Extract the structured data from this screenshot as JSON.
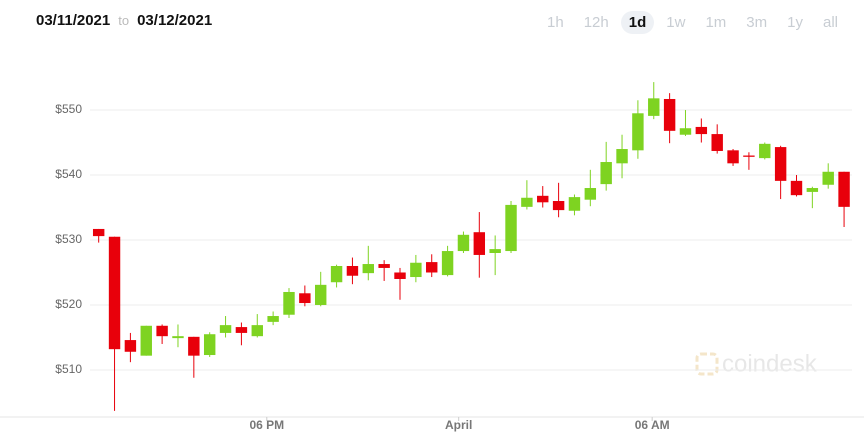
{
  "range": {
    "from": "03/11/2021",
    "sep": "to",
    "to": "03/12/2021"
  },
  "intervals": [
    "1h",
    "12h",
    "1d",
    "1w",
    "1m",
    "3m",
    "1y",
    "all"
  ],
  "selected_interval": 2,
  "watermark": "coindesk",
  "chart_data": {
    "type": "candlestick",
    "x": [
      0,
      1,
      2,
      3,
      4,
      5,
      6,
      7,
      8,
      9,
      10,
      11,
      12,
      13,
      14,
      15,
      16,
      17,
      18,
      19,
      20,
      21,
      22,
      23,
      24,
      25,
      26,
      27,
      28,
      29,
      30,
      31,
      32,
      33,
      34,
      35,
      36,
      37,
      38,
      39,
      40,
      41,
      42,
      43,
      44,
      45,
      46,
      47
    ],
    "open": [
      531.7,
      530.5,
      514.6,
      512.2,
      516.8,
      514.9,
      515.1,
      512.3,
      515.7,
      516.6,
      515.2,
      517.4,
      518.5,
      521.8,
      520.0,
      523.5,
      526.0,
      524.9,
      526.3,
      525.0,
      524.3,
      526.6,
      524.6,
      528.3,
      531.2,
      528.0,
      528.3,
      535.1,
      536.8,
      536.0,
      534.5,
      536.2,
      538.6,
      541.8,
      543.8,
      549.1,
      551.7,
      546.2,
      547.4,
      546.3,
      543.8,
      543.0,
      542.6,
      544.3,
      539.1,
      537.4,
      538.5,
      540.5
    ],
    "high": [
      531.7,
      530.5,
      515.7,
      516.8,
      517.0,
      517.0,
      515.1,
      515.8,
      518.3,
      517.3,
      518.6,
      519.0,
      522.6,
      523.0,
      525.1,
      526.2,
      527.3,
      529.1,
      526.9,
      525.7,
      527.7,
      527.8,
      529.1,
      531.3,
      534.3,
      530.7,
      536.0,
      539.2,
      538.3,
      538.8,
      537.0,
      540.8,
      545.1,
      546.2,
      551.5,
      554.3,
      552.6,
      550.0,
      548.7,
      547.8,
      544.0,
      543.5,
      545.0,
      544.5,
      540.0,
      538.2,
      541.8,
      540.5
    ],
    "low": [
      529.6,
      503.7,
      511.2,
      512.2,
      514.0,
      513.5,
      508.8,
      512.0,
      515.0,
      513.8,
      515.0,
      516.9,
      518.0,
      519.8,
      519.8,
      522.7,
      523.2,
      523.8,
      523.7,
      520.8,
      523.5,
      524.3,
      524.4,
      528.0,
      524.2,
      524.6,
      528.0,
      534.7,
      535.0,
      533.5,
      533.8,
      535.2,
      537.6,
      539.5,
      542.5,
      548.6,
      544.9,
      546.0,
      545.0,
      543.3,
      541.4,
      540.8,
      542.4,
      536.3,
      536.7,
      534.9,
      537.9,
      532.0
    ],
    "close": [
      530.6,
      513.2,
      512.8,
      516.8,
      515.2,
      515.2,
      512.2,
      515.5,
      516.9,
      515.7,
      516.9,
      518.3,
      522.0,
      520.3,
      523.1,
      526.0,
      524.5,
      526.3,
      525.7,
      524.0,
      526.5,
      525.0,
      528.3,
      530.8,
      527.7,
      528.6,
      535.4,
      536.5,
      535.8,
      534.6,
      536.6,
      538.0,
      542.0,
      544.0,
      549.5,
      551.8,
      546.8,
      547.2,
      546.3,
      543.7,
      541.8,
      542.8,
      544.8,
      539.1,
      536.9,
      538.0,
      540.5,
      535.1
    ],
    "up_color": "#7ed321",
    "down_color": "#e8000b",
    "xlim": [
      -3.7,
      47.5
    ],
    "xticks": [
      {
        "value": 10.6,
        "label": "06 PM"
      },
      {
        "value": 22.7,
        "label": "April"
      },
      {
        "value": 34.9,
        "label": "06 AM"
      }
    ],
    "ylim": [
      502.3,
      557.7
    ],
    "yticks": [
      {
        "value": 510,
        "label": "$510"
      },
      {
        "value": 520,
        "label": "$520"
      },
      {
        "value": 530,
        "label": "$530"
      },
      {
        "value": 540,
        "label": "$540"
      },
      {
        "value": 550,
        "label": "$550"
      }
    ],
    "grid": true
  }
}
